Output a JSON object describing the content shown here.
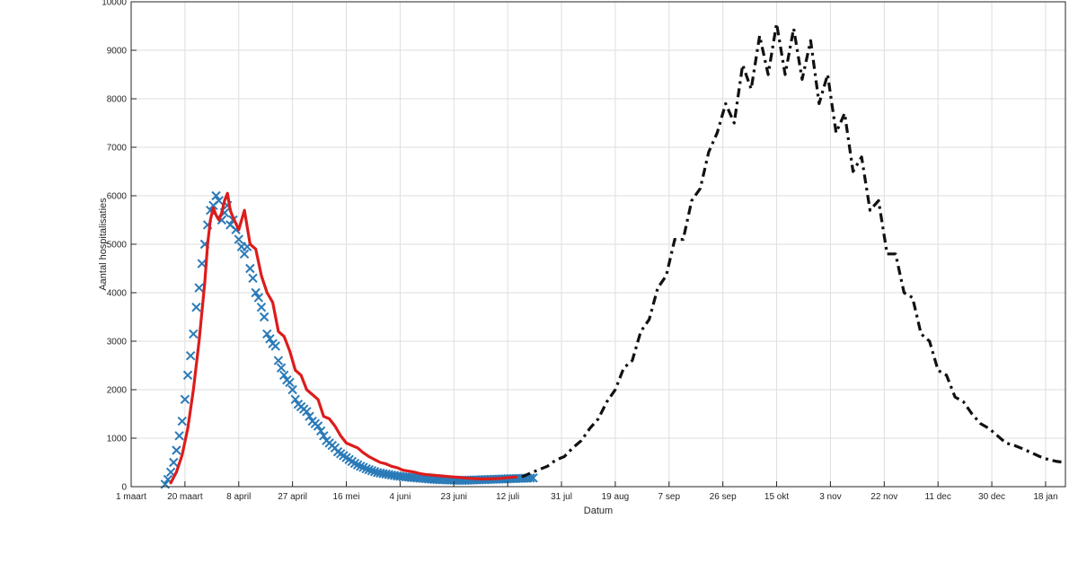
{
  "chart_data": {
    "type": "line",
    "title": "",
    "xlabel": "Datum",
    "ylabel": "Aantal hospitalisaties",
    "ylim": [
      0,
      10000
    ],
    "y_ticks": [
      0,
      1000,
      2000,
      3000,
      4000,
      5000,
      6000,
      7000,
      8000,
      9000,
      10000
    ],
    "x_ticks": [
      "1 maart",
      "20 maart",
      "8 april",
      "27 april",
      "16 mei",
      "4 juni",
      "23 juni",
      "12 juli",
      "31 jul",
      "19 aug",
      "7 sep",
      "26 sep",
      "15 okt",
      "3 nov",
      "22 nov",
      "11 dec",
      "30 dec",
      "18 jan"
    ],
    "grid": true,
    "x_unit": "days since 1 maart",
    "xlim": [
      0,
      330
    ],
    "series": [
      {
        "name": "",
        "style": "markers-x",
        "color": "#2a7ab8",
        "x": [
          12,
          13,
          14,
          15,
          16,
          17,
          18,
          19,
          20,
          21,
          22,
          23,
          24,
          25,
          26,
          27,
          28,
          29,
          30,
          31,
          32,
          33,
          34,
          35,
          36,
          37,
          38,
          39,
          40,
          41,
          42,
          43,
          44,
          45,
          46,
          47,
          48,
          49,
          50,
          51,
          52,
          53,
          54,
          55,
          56,
          57,
          58,
          59,
          60,
          61,
          62,
          63,
          64,
          65,
          66,
          67,
          68,
          69,
          70,
          71,
          72,
          73,
          74,
          75,
          76,
          77,
          78,
          79,
          80,
          81,
          82,
          83,
          84,
          85,
          86,
          87,
          88,
          89,
          90,
          91,
          92,
          93,
          94,
          95,
          96,
          97,
          98,
          99,
          100,
          101,
          102,
          103,
          104,
          105,
          106,
          107,
          108,
          109,
          110,
          111,
          112,
          113,
          114,
          115,
          116,
          117,
          118,
          119,
          120,
          121,
          122,
          123,
          124,
          125,
          126,
          127,
          128,
          129,
          130,
          131,
          132,
          133,
          134,
          135,
          136,
          137,
          138,
          139,
          140,
          141,
          142
        ],
        "y": [
          50,
          150,
          300,
          500,
          750,
          1050,
          1350,
          1800,
          2300,
          2700,
          3150,
          3700,
          4100,
          4600,
          5000,
          5400,
          5700,
          5800,
          6000,
          5900,
          5500,
          5650,
          5800,
          5400,
          5500,
          5300,
          5100,
          4950,
          4800,
          4950,
          4500,
          4300,
          4000,
          3900,
          3700,
          3500,
          3150,
          3050,
          2950,
          2900,
          2600,
          2450,
          2300,
          2200,
          2150,
          2000,
          1800,
          1700,
          1650,
          1600,
          1550,
          1450,
          1350,
          1300,
          1250,
          1150,
          1050,
          950,
          900,
          850,
          800,
          720,
          680,
          640,
          600,
          560,
          520,
          480,
          450,
          420,
          400,
          370,
          350,
          330,
          310,
          290,
          280,
          270,
          260,
          250,
          240,
          230,
          220,
          215,
          205,
          200,
          195,
          190,
          185,
          180,
          175,
          170,
          165,
          160,
          155,
          150,
          148,
          145,
          142,
          140,
          138,
          136,
          134,
          132,
          130,
          130,
          132,
          134,
          136,
          138,
          140,
          142,
          144,
          146,
          148,
          150,
          152,
          154,
          156,
          158,
          160,
          162,
          164,
          166,
          168,
          170,
          172,
          174,
          176,
          178,
          180
        ]
      },
      {
        "name": "",
        "style": "solid",
        "color": "#dd1c1c",
        "x": [
          14,
          16,
          18,
          20,
          22,
          24,
          26,
          27,
          28,
          29,
          30,
          31,
          32,
          33,
          34,
          35,
          36,
          38,
          40,
          42,
          44,
          46,
          48,
          50,
          52,
          54,
          56,
          58,
          60,
          62,
          64,
          66,
          68,
          70,
          72,
          74,
          76,
          78,
          80,
          82,
          84,
          86,
          88,
          90,
          92,
          94,
          96,
          98,
          100,
          102,
          104,
          106,
          108,
          110,
          112,
          114,
          116,
          118,
          120,
          122,
          124,
          126,
          128,
          130,
          132,
          134,
          136
        ],
        "y": [
          80,
          300,
          650,
          1200,
          2000,
          3000,
          4200,
          5000,
          5500,
          5750,
          5600,
          5500,
          5650,
          5900,
          6050,
          5700,
          5550,
          5300,
          5700,
          5000,
          4900,
          4350,
          4000,
          3800,
          3200,
          3100,
          2800,
          2400,
          2300,
          2000,
          1900,
          1800,
          1450,
          1400,
          1250,
          1050,
          900,
          850,
          800,
          700,
          620,
          560,
          500,
          470,
          420,
          390,
          340,
          320,
          300,
          270,
          250,
          240,
          230,
          220,
          210,
          200,
          190,
          180,
          170,
          165,
          160,
          160,
          165,
          170,
          180,
          190,
          200
        ]
      },
      {
        "name": "",
        "style": "dash-dot",
        "color": "#111111",
        "x": [
          138,
          141,
          144,
          147,
          150,
          153,
          156,
          159,
          162,
          165,
          168,
          171,
          174,
          177,
          180,
          183,
          186,
          189,
          192,
          195,
          198,
          201,
          204,
          207,
          210,
          213,
          216,
          219,
          222,
          225,
          228,
          231,
          234,
          237,
          240,
          243,
          246,
          249,
          252,
          255,
          258,
          261,
          264,
          267,
          270,
          273,
          276,
          279,
          282,
          285,
          288,
          291,
          294,
          297,
          300,
          303,
          306,
          309,
          312,
          315,
          318,
          321,
          324,
          327,
          330
        ],
        "y": [
          200,
          280,
          350,
          420,
          550,
          620,
          800,
          950,
          1200,
          1400,
          1750,
          2000,
          2450,
          2600,
          3200,
          3450,
          4100,
          4350,
          5100,
          5100,
          5900,
          6150,
          6900,
          7300,
          7900,
          7500,
          8700,
          8200,
          9300,
          8500,
          9550,
          8500,
          9450,
          8400,
          9200,
          7900,
          8500,
          7300,
          7700,
          6500,
          6800,
          5700,
          5900,
          4800,
          4800,
          4000,
          3900,
          3150,
          3000,
          2400,
          2300,
          1850,
          1750,
          1500,
          1300,
          1200,
          1050,
          900,
          850,
          780,
          700,
          620,
          560,
          520,
          500
        ]
      }
    ]
  }
}
